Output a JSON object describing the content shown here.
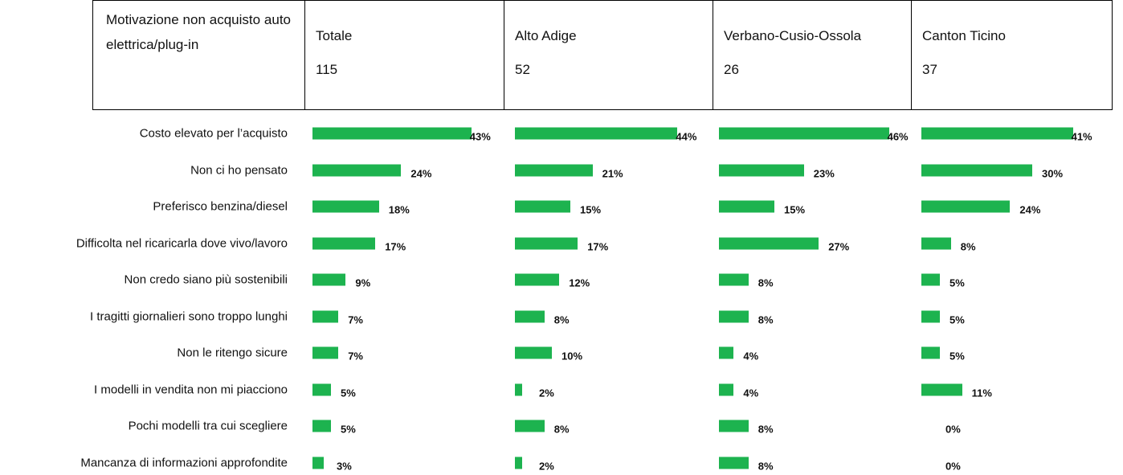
{
  "chart_data": {
    "type": "bar",
    "header": "Motivazione non acquisto auto elettrica/plug-in",
    "categories": [
      "Costo elevato per l’acquisto",
      "Non ci ho pensato",
      "Preferisco benzina/diesel",
      "Difficolta nel ricaricarla dove vivo/lavoro",
      "Non credo siano più sostenibili",
      "I tragitti giornalieri sono troppo lunghi",
      "Non le ritengo sicure",
      "I modelli in vendita non mi piacciono",
      "Pochi modelli tra cui scegliere",
      "Mancanza di informazioni approfondite"
    ],
    "series": [
      {
        "name": "Totale",
        "n": 115,
        "color": "#1db34f",
        "values": [
          43,
          24,
          18,
          17,
          9,
          7,
          7,
          5,
          5,
          3
        ],
        "value_labels": [
          "43%",
          "24%",
          "18%",
          "17%",
          "9%",
          "7%",
          "7%",
          "5%",
          "5%",
          "3%"
        ]
      },
      {
        "name": "Alto Adige",
        "n": 52,
        "color": "#1db34f",
        "values": [
          44,
          21,
          15,
          17,
          12,
          8,
          10,
          2,
          8,
          2
        ],
        "value_labels": [
          "44%",
          "21%",
          "15%",
          "17%",
          "12%",
          "8%",
          "10%",
          "2%",
          "8%",
          "2%"
        ]
      },
      {
        "name": "Verbano-Cusio-Ossola",
        "n": 26,
        "color": "#1db34f",
        "values": [
          46,
          23,
          15,
          27,
          8,
          8,
          4,
          4,
          8,
          8
        ],
        "value_labels": [
          "46%",
          "23%",
          "15%",
          "27%",
          "8%",
          "8%",
          "4%",
          "4%",
          "8%",
          "8%"
        ]
      },
      {
        "name": "Canton Ticino",
        "n": 37,
        "color": "#1db34f",
        "values": [
          41,
          30,
          24,
          8,
          5,
          5,
          5,
          11,
          0,
          0
        ],
        "value_labels": [
          "41%",
          "30%",
          "24%",
          "8%",
          "5%",
          "5%",
          "5%",
          "11%",
          "0%",
          "0%"
        ]
      }
    ]
  }
}
